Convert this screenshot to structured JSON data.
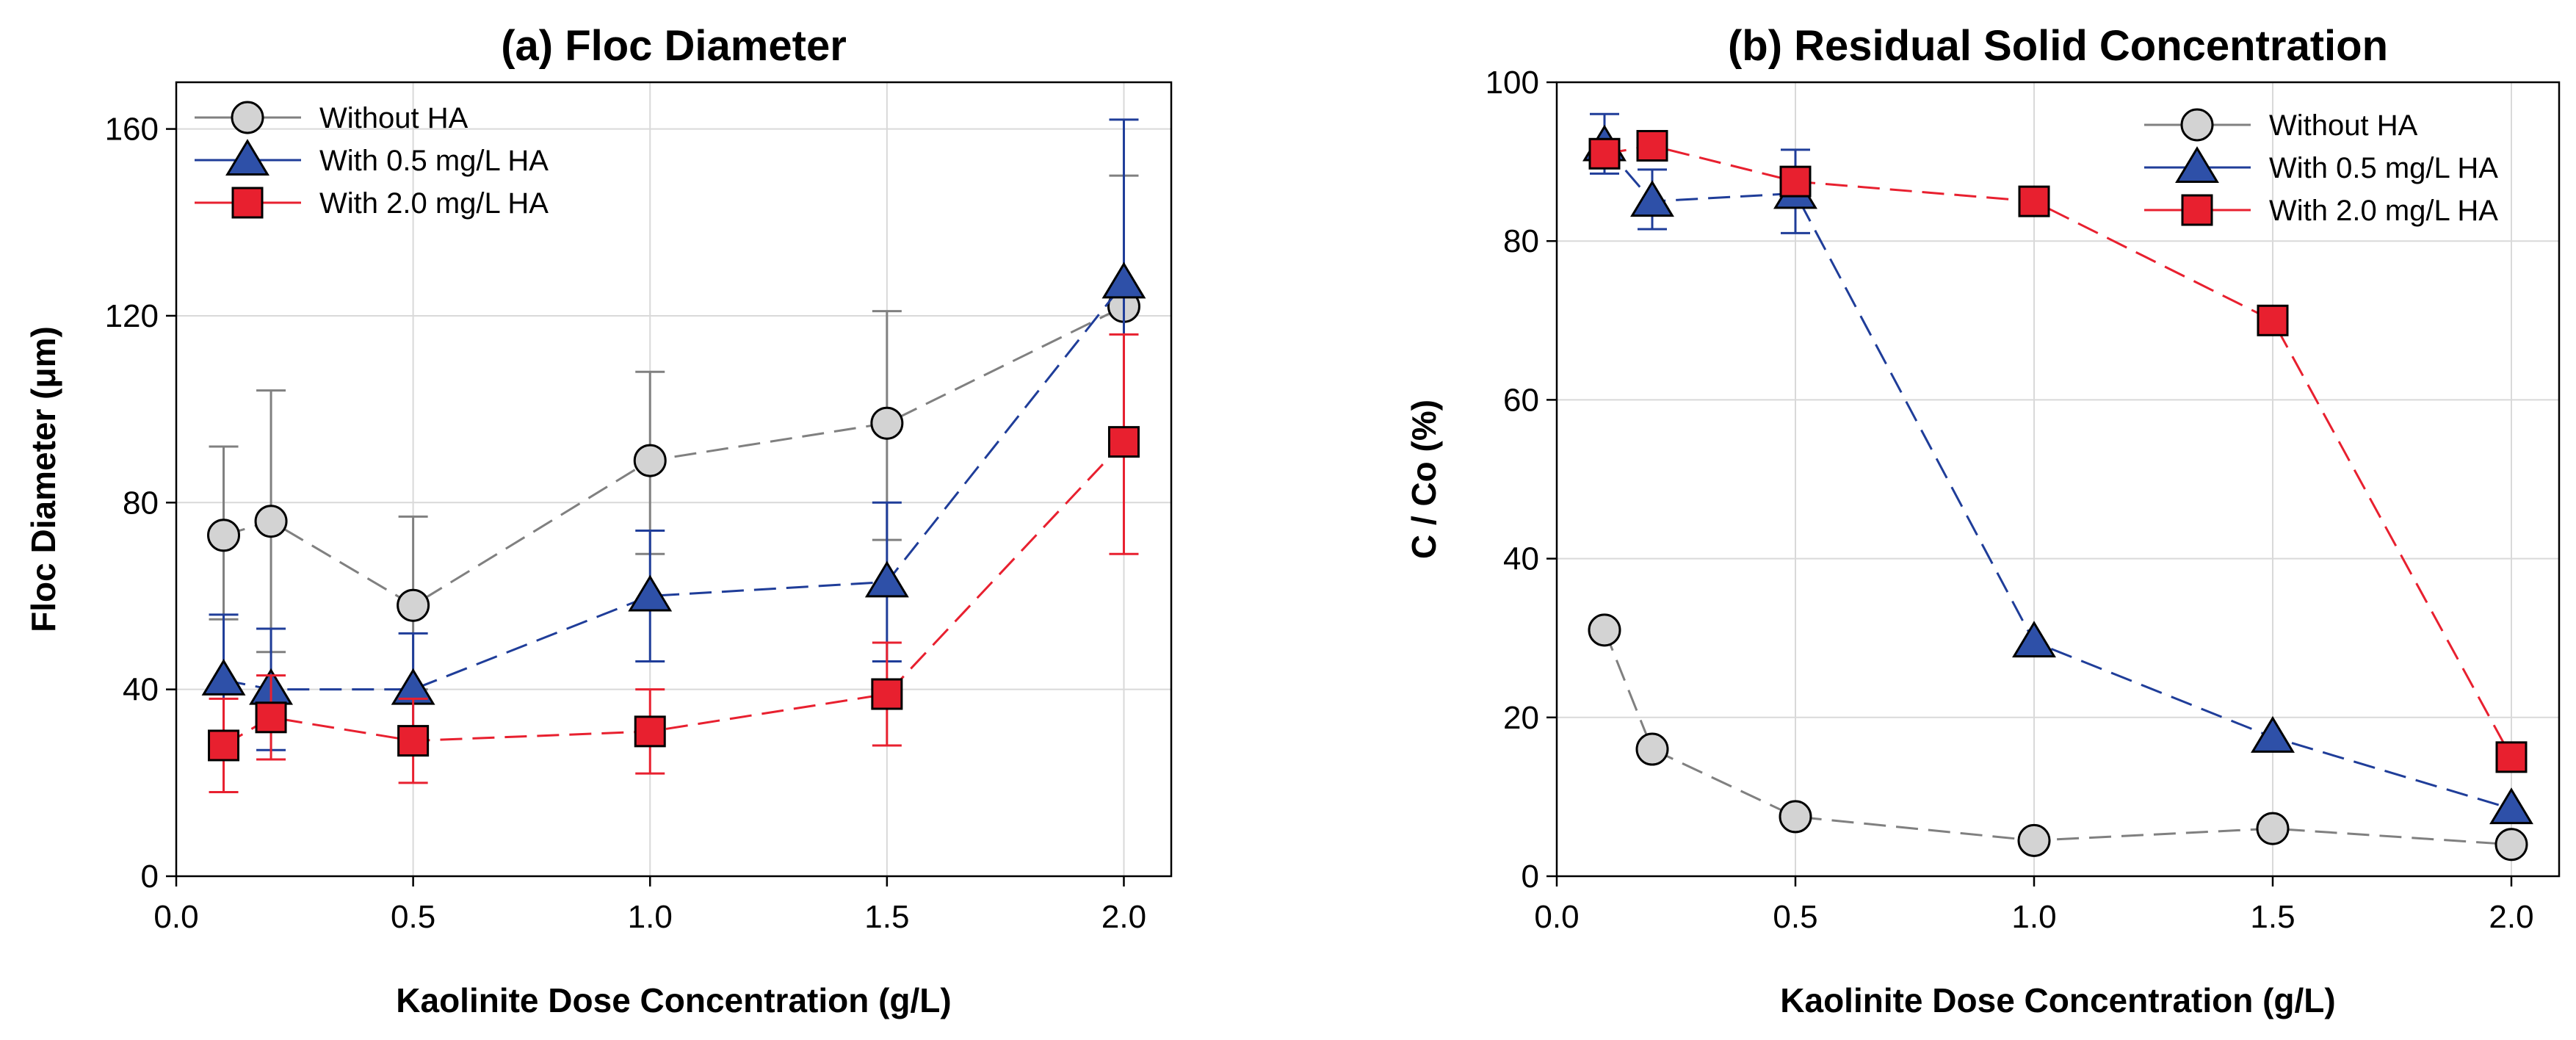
{
  "chart_data": [
    {
      "type": "line",
      "title": "(a) Floc Diameter",
      "xlabel": "Kaolinite Dose Concentration (g/L)",
      "ylabel": "Floc Diameter (μm)",
      "xlim": [
        0,
        2.1
      ],
      "ylim": [
        0,
        170
      ],
      "xticks": [
        0.0,
        0.5,
        1.0,
        1.5,
        2.0
      ],
      "xtick_labels": [
        "0.0",
        "0.5",
        "1.0",
        "1.5",
        "2.0"
      ],
      "yticks": [
        0,
        40,
        80,
        120,
        160
      ],
      "ytick_labels": [
        "0",
        "40",
        "80",
        "120",
        "160"
      ],
      "grid": true,
      "legend_position": "top-left",
      "x": [
        0.1,
        0.2,
        0.5,
        1.0,
        1.5,
        2.0
      ],
      "series": [
        {
          "name": "Without HA",
          "marker": "circle",
          "color": "#808080",
          "fill": "#d3d3d3",
          "values": [
            73,
            76,
            58,
            89,
            97,
            122
          ],
          "error_upper": [
            92,
            104,
            77,
            108,
            121,
            150
          ],
          "error_lower": [
            55,
            48,
            40,
            69,
            72,
            94
          ]
        },
        {
          "name": "With 0.5 mg/L HA",
          "marker": "triangle",
          "color": "#1f3d99",
          "fill": "#2e50a8",
          "values": [
            42,
            40,
            40,
            60,
            63,
            127
          ],
          "error_upper": [
            56,
            53,
            52,
            74,
            80,
            162
          ],
          "error_lower": [
            28,
            27,
            28,
            46,
            46,
            92
          ]
        },
        {
          "name": "With 2.0 mg/L HA",
          "marker": "square",
          "color": "#e8202f",
          "fill": "#e8202f",
          "values": [
            28,
            34,
            29,
            31,
            39,
            93
          ],
          "error_upper": [
            38,
            43,
            38,
            40,
            50,
            116
          ],
          "error_lower": [
            18,
            25,
            20,
            22,
            28,
            69
          ]
        }
      ]
    },
    {
      "type": "line",
      "title": "(b) Residual Solid Concentration",
      "xlabel": "Kaolinite Dose Concentration (g/L)",
      "ylabel": "C / Co (%)",
      "xlim": [
        0,
        2.1
      ],
      "ylim": [
        0,
        100
      ],
      "xticks": [
        0.0,
        0.5,
        1.0,
        1.5,
        2.0
      ],
      "xtick_labels": [
        "0.0",
        "0.5",
        "1.0",
        "1.5",
        "2.0"
      ],
      "yticks": [
        0,
        20,
        40,
        60,
        80,
        100
      ],
      "ytick_labels": [
        "0",
        "20",
        "40",
        "60",
        "80",
        "100"
      ],
      "grid": true,
      "legend_position": "top-right",
      "x": [
        0.1,
        0.2,
        0.5,
        1.0,
        1.5,
        2.0
      ],
      "series": [
        {
          "name": "Without HA",
          "marker": "circle",
          "color": "#808080",
          "fill": "#d3d3d3",
          "values": [
            31,
            16,
            7.5,
            4.5,
            6,
            4
          ],
          "error_upper": [
            31,
            16,
            7.5,
            4.5,
            6,
            4
          ],
          "error_lower": [
            31,
            16,
            7.5,
            4.5,
            6,
            4
          ]
        },
        {
          "name": "With 0.5 mg/L HA",
          "marker": "triangle",
          "color": "#1f3d99",
          "fill": "#2e50a8",
          "values": [
            92,
            85,
            86,
            29.5,
            17.5,
            8.5
          ],
          "error_upper": [
            96,
            89,
            91.5,
            29.5,
            17.5,
            8.5
          ],
          "error_lower": [
            88.5,
            81.5,
            81,
            29.5,
            17.5,
            8.5
          ]
        },
        {
          "name": "With 2.0 mg/L HA",
          "marker": "square",
          "color": "#e8202f",
          "fill": "#e8202f",
          "values": [
            91,
            92,
            87.5,
            85,
            70,
            15
          ],
          "error_upper": [
            91,
            92,
            87.5,
            85,
            70,
            15
          ],
          "error_lower": [
            91,
            92,
            87.5,
            85,
            70,
            15
          ]
        }
      ]
    }
  ]
}
